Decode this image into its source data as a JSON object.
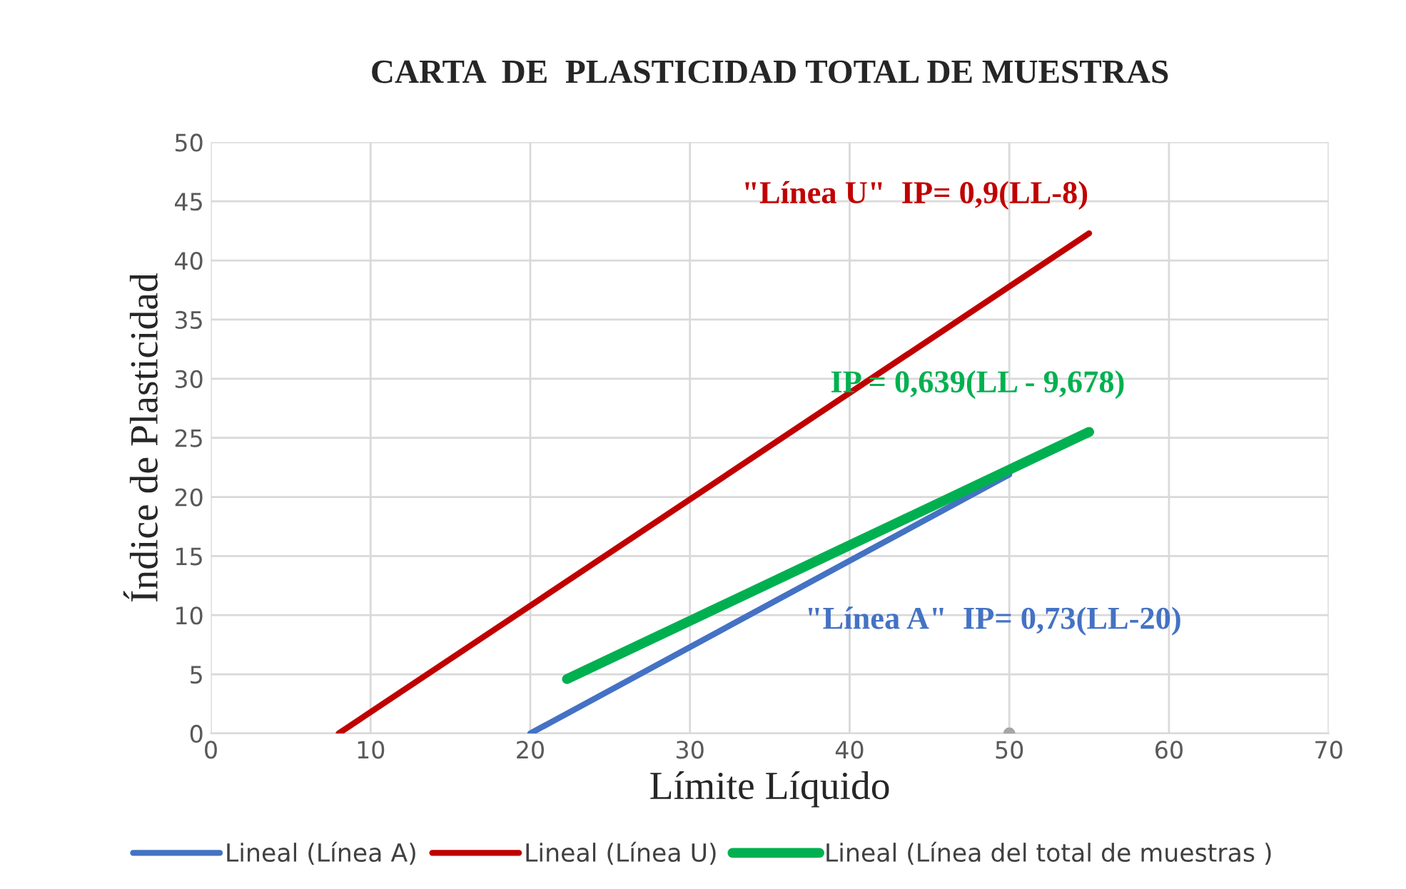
{
  "chart_data": {
    "type": "line",
    "title": "CARTA  DE  PLASTICIDAD TOTAL DE MUESTRAS",
    "xlabel": "Límite Líquido",
    "ylabel": "Índice de Plasticidad",
    "xlim": [
      0,
      70
    ],
    "xticks": [
      0,
      10,
      20,
      30,
      40,
      50,
      60,
      70
    ],
    "ylim": [
      0,
      50
    ],
    "yticks": [
      0,
      5,
      10,
      15,
      20,
      25,
      30,
      35,
      40,
      45,
      50
    ],
    "grid": true,
    "legend": "bottom",
    "series": [
      {
        "name": "Lineal (Línea A)",
        "color": "#4472c4",
        "x": [
          20,
          50
        ],
        "values": [
          0,
          21.9
        ]
      },
      {
        "name": "Lineal (Línea U)",
        "color": "#c00000",
        "x": [
          8,
          55
        ],
        "values": [
          0,
          42.3
        ]
      },
      {
        "name": "Lineal (Línea del total de muestras )",
        "color": "#00b050",
        "x": [
          22.3,
          55
        ],
        "values": [
          4.6,
          25.5
        ]
      },
      {
        "type": "scatter",
        "color": "#a6a6a6",
        "x": [
          50
        ],
        "values": [
          0
        ]
      }
    ],
    "annotations": [
      "\"Línea A\"  IP= 0,73(LL-20)",
      "\"Línea U\"  IP= 0,9(LL-8)",
      "IP = 0,639(LL - 9,678)"
    ]
  }
}
